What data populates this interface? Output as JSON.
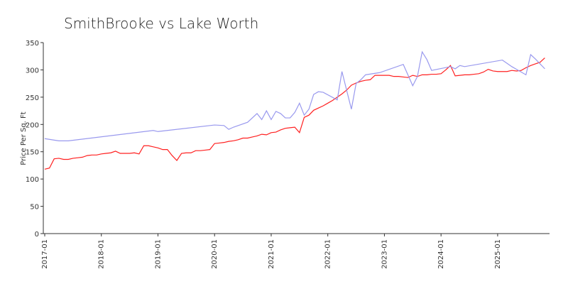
{
  "chart_data": {
    "type": "line",
    "title": "SmithBrooke vs Lake Worth",
    "y_label": "Price Per Sq. Ft",
    "xlim": [
      "2017-01",
      "2025-12"
    ],
    "xticks": [
      "2017-01",
      "2018-01",
      "2019-01",
      "2020-01",
      "2021-01",
      "2022-01",
      "2023-01",
      "2024-01",
      "2025-01"
    ],
    "ylim": [
      0,
      350
    ],
    "yticks": [
      0,
      50,
      100,
      150,
      200,
      250,
      300,
      350
    ],
    "grid": false,
    "series": [
      {
        "color": "#ff2020",
        "x": [
          "2017-01",
          "2017-02",
          "2017-03",
          "2017-04",
          "2017-05",
          "2017-06",
          "2017-07",
          "2017-08",
          "2017-09",
          "2017-10",
          "2017-11",
          "2017-12",
          "2018-01",
          "2018-02",
          "2018-03",
          "2018-04",
          "2018-05",
          "2018-06",
          "2018-07",
          "2018-08",
          "2018-09",
          "2018-10",
          "2018-11",
          "2018-12",
          "2019-01",
          "2019-02",
          "2019-03",
          "2019-04",
          "2019-05",
          "2019-06",
          "2019-07",
          "2019-08",
          "2019-09",
          "2019-10",
          "2019-11",
          "2019-12",
          "2020-01",
          "2020-02",
          "2020-03",
          "2020-04",
          "2020-05",
          "2020-06",
          "2020-07",
          "2020-08",
          "2020-09",
          "2020-10",
          "2020-11",
          "2020-12",
          "2021-01",
          "2021-02",
          "2021-03",
          "2021-04",
          "2021-05",
          "2021-06",
          "2021-07",
          "2021-08",
          "2021-09",
          "2021-10",
          "2021-11",
          "2021-12",
          "2022-01",
          "2022-02",
          "2022-03",
          "2022-04",
          "2022-05",
          "2022-06",
          "2022-07",
          "2022-08",
          "2022-09",
          "2022-10",
          "2022-11",
          "2022-12",
          "2023-01",
          "2023-02",
          "2023-03",
          "2023-04",
          "2023-05",
          "2023-06",
          "2023-07",
          "2023-08",
          "2023-09",
          "2023-10",
          "2023-11",
          "2023-12",
          "2024-01",
          "2024-02",
          "2024-03",
          "2024-04",
          "2024-05",
          "2024-06",
          "2024-07",
          "2024-08",
          "2024-09",
          "2024-10",
          "2024-11",
          "2024-12",
          "2025-01",
          "2025-02",
          "2025-03",
          "2025-04",
          "2025-05",
          "2025-06",
          "2025-07",
          "2025-08",
          "2025-09",
          "2025-10",
          "2025-11"
        ],
        "values": [
          118,
          120,
          137,
          138,
          136,
          136,
          138,
          139,
          140,
          143,
          144,
          144,
          146,
          147,
          148,
          151,
          147,
          147,
          147,
          148,
          146,
          161,
          161,
          159,
          157,
          154,
          154,
          143,
          134,
          147,
          148,
          148,
          152,
          152,
          153,
          154,
          165,
          166,
          167,
          169,
          170,
          172,
          175,
          175,
          177,
          179,
          182,
          181,
          185,
          186,
          190,
          193,
          194,
          195,
          185,
          213,
          217,
          226,
          230,
          234,
          239,
          244,
          250,
          256,
          263,
          272,
          276,
          279,
          281,
          282,
          290,
          290,
          290,
          290,
          288,
          288,
          287,
          286,
          290,
          288,
          291,
          291,
          292,
          292,
          293,
          300,
          308,
          289,
          290,
          291,
          291,
          292,
          293,
          296,
          301,
          298,
          297,
          297,
          297,
          299,
          298,
          299,
          304,
          308,
          311,
          314,
          322
        ]
      },
      {
        "color": "#9999ee",
        "x": [
          "2017-01",
          "2017-04",
          "2017-06",
          "2018-12",
          "2019-01",
          "2020-01",
          "2020-03",
          "2020-04",
          "2020-05",
          "2020-08",
          "2020-10",
          "2020-11",
          "2020-12",
          "2021-01",
          "2021-02",
          "2021-03",
          "2021-04",
          "2021-05",
          "2021-06",
          "2021-07",
          "2021-08",
          "2021-09",
          "2021-10",
          "2021-11",
          "2021-12",
          "2022-03",
          "2022-04",
          "2022-06",
          "2022-07",
          "2022-08",
          "2022-09",
          "2022-12",
          "2023-05",
          "2023-07",
          "2023-08",
          "2023-09",
          "2023-10",
          "2023-11",
          "2024-03",
          "2024-04",
          "2024-05",
          "2024-06",
          "2025-02",
          "2025-04",
          "2025-05",
          "2025-07",
          "2025-08",
          "2025-09",
          "2025-11"
        ],
        "values": [
          174,
          170,
          170,
          189,
          187,
          199,
          198,
          191,
          195,
          204,
          220,
          209,
          225,
          209,
          224,
          220,
          212,
          212,
          222,
          239,
          217,
          228,
          255,
          260,
          259,
          245,
          297,
          228,
          275,
          282,
          291,
          295,
          310,
          271,
          288,
          333,
          319,
          299,
          306,
          302,
          308,
          306,
          318,
          306,
          301,
          291,
          328,
          320,
          302
        ]
      }
    ]
  }
}
